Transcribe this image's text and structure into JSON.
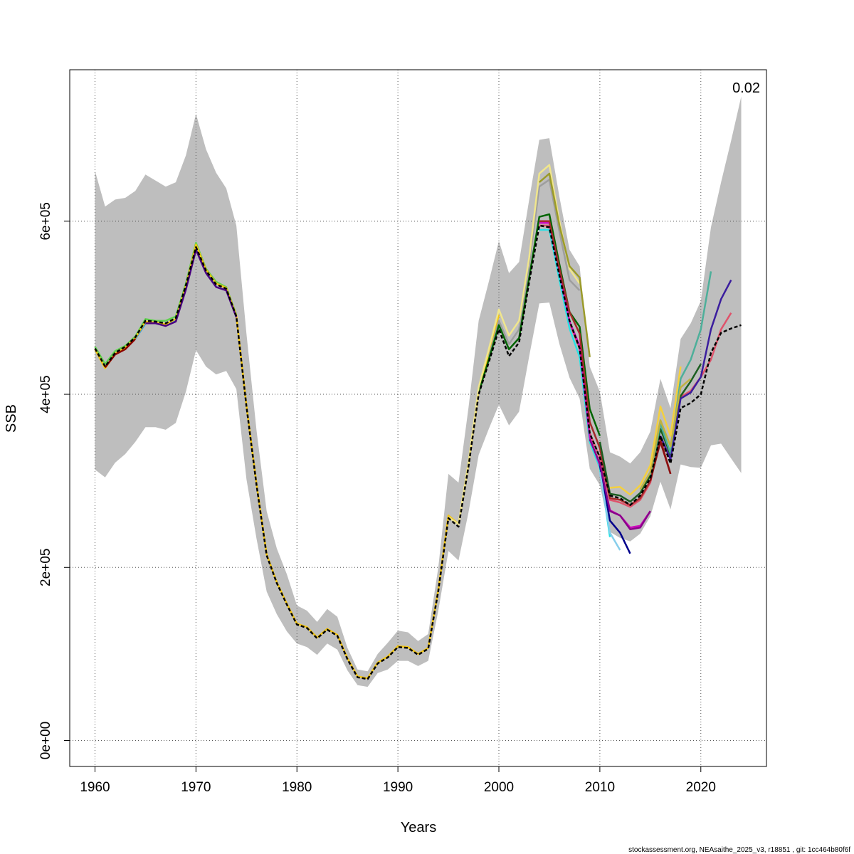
{
  "chart_data": {
    "type": "line",
    "xlabel": "Years",
    "ylabel": "SSB",
    "xlim": [
      1957.5,
      2026.5
    ],
    "ylim": [
      -30000,
      775000
    ],
    "x_ticks": [
      1960,
      1970,
      1980,
      1990,
      2000,
      2010,
      2020
    ],
    "x_tick_labels": [
      "1960",
      "1970",
      "1980",
      "1990",
      "2000",
      "2010",
      "2020"
    ],
    "y_ticks": [
      0,
      200000,
      400000,
      600000
    ],
    "y_tick_labels": [
      "0e+00",
      "2e+05",
      "4e+05",
      "6e+05"
    ],
    "grid": true,
    "annotation": "0.02",
    "footer": "stockassessment.org, NEAsaithe_2025_v3, r18851 , git: 1cc464b80f6f",
    "band_color": "#BEBEBE",
    "confidence_band": {
      "x": [
        1960,
        1961,
        1962,
        1963,
        1964,
        1965,
        1966,
        1967,
        1968,
        1969,
        1970,
        1971,
        1972,
        1973,
        1974,
        1975,
        1976,
        1977,
        1978,
        1979,
        1980,
        1981,
        1982,
        1983,
        1984,
        1985,
        1986,
        1987,
        1988,
        1989,
        1990,
        1991,
        1992,
        1993,
        1994,
        1995,
        1996,
        1997,
        1998,
        1999,
        2000,
        2001,
        2002,
        2003,
        2004,
        2005,
        2006,
        2007,
        2008,
        2009,
        2010,
        2011,
        2012,
        2013,
        2014,
        2015,
        2016,
        2017,
        2018,
        2019,
        2020,
        2021,
        2022,
        2023,
        2024
      ],
      "upper": [
        658000,
        617000,
        625000,
        627000,
        635000,
        654000,
        647000,
        640000,
        645000,
        676000,
        724000,
        683000,
        656000,
        638000,
        595000,
        470000,
        358000,
        265000,
        222000,
        192000,
        156000,
        150000,
        137000,
        152000,
        143000,
        107000,
        82000,
        80000,
        100000,
        113000,
        127000,
        125000,
        115000,
        123000,
        200000,
        308000,
        298000,
        385000,
        485000,
        530000,
        577000,
        540000,
        553000,
        625000,
        694000,
        696000,
        628000,
        567000,
        548000,
        432000,
        403000,
        333000,
        328000,
        320000,
        333000,
        357000,
        418000,
        384000,
        464000,
        482000,
        508000,
        593000,
        645000,
        693000,
        744000
      ],
      "lower": [
        313000,
        304000,
        321000,
        331000,
        345000,
        362000,
        362000,
        359000,
        367000,
        403000,
        451000,
        432000,
        423000,
        427000,
        406000,
        302000,
        233000,
        172000,
        146000,
        126000,
        112000,
        108000,
        99000,
        112000,
        105000,
        81000,
        64000,
        62000,
        78000,
        82000,
        92000,
        92000,
        86000,
        92000,
        150000,
        219000,
        208000,
        264000,
        330000,
        360000,
        388000,
        364000,
        380000,
        444000,
        505000,
        506000,
        458000,
        419000,
        395000,
        314000,
        295000,
        241000,
        234000,
        230000,
        239000,
        259000,
        299000,
        267000,
        319000,
        316000,
        315000,
        341000,
        343000,
        326000,
        309000
      ]
    },
    "series": [
      {
        "color": "#000000",
        "dashed": true,
        "x": [
          1960,
          1961,
          1962,
          1963,
          1964,
          1965,
          1966,
          1967,
          1968,
          1969,
          1970,
          1971,
          1972,
          1973,
          1974,
          1975,
          1976,
          1977,
          1978,
          1979,
          1980,
          1981,
          1982,
          1983,
          1984,
          1985,
          1986,
          1987,
          1988,
          1989,
          1990,
          1991,
          1992,
          1993,
          1994,
          1995,
          1996,
          1997,
          1998,
          1999,
          2000,
          2001,
          2002,
          2003,
          2004,
          2005,
          2006,
          2007,
          2008,
          2009,
          2010,
          2011,
          2012,
          2013,
          2014,
          2015,
          2016,
          2017,
          2018,
          2019,
          2020,
          2021,
          2022,
          2023,
          2024
        ],
        "values": [
          453000,
          432000,
          448000,
          455000,
          466000,
          485000,
          484000,
          482000,
          488000,
          526000,
          570000,
          543000,
          527000,
          522000,
          490000,
          386000,
          295000,
          214000,
          182000,
          157000,
          134000,
          130000,
          118000,
          128000,
          121000,
          94000,
          73000,
          71000,
          89000,
          96000,
          108000,
          107000,
          99000,
          106000,
          173000,
          257000,
          247000,
          317000,
          400000,
          437000,
          475000,
          444000,
          460000,
          530000,
          595000,
          593000,
          537000,
          485000,
          453000,
          355000,
          327000,
          283000,
          280000,
          272000,
          283000,
          303000,
          352000,
          320000,
          384000,
          390000,
          400000,
          448000,
          471000,
          476000,
          480000
        ]
      },
      {
        "color": "#DF536B",
        "x": [
          2004,
          2005,
          2006,
          2007,
          2008,
          2009,
          2010,
          2011,
          2012,
          2013,
          2014,
          2015,
          2016,
          2017,
          2018,
          2019,
          2020,
          2021,
          2022,
          2023
        ],
        "values": [
          595000,
          595000,
          540000,
          482000,
          453000,
          355000,
          327000,
          278000,
          275000,
          270000,
          278000,
          298000,
          350000,
          325000,
          397000,
          404000,
          420000,
          440000,
          475000,
          494000
        ]
      },
      {
        "color": "#61D04F",
        "x": [
          1960,
          1961,
          1962,
          1963,
          1964,
          1965,
          1966,
          1967,
          1968,
          1969,
          1970,
          1971,
          1972,
          1973,
          1974
        ],
        "values": [
          455000,
          435000,
          450000,
          456000,
          467000,
          487000,
          485000,
          485000,
          490000,
          528000,
          575000,
          545000,
          530000,
          524000,
          492000
        ]
      },
      {
        "color": "#2297E6",
        "x": [
          1964,
          1965,
          1966,
          1967,
          1968,
          1969,
          1970,
          1971,
          1972
        ],
        "values": [
          464000,
          482000,
          482000,
          480000,
          485000,
          522000,
          568000,
          541000,
          525000
        ]
      },
      {
        "color": "#28E2E5",
        "x": [
          2004,
          2005,
          2006,
          2007,
          2008,
          2009,
          2010,
          2011
        ],
        "values": [
          590000,
          590000,
          532000,
          476000,
          443000,
          345000,
          315000,
          235000
        ]
      },
      {
        "color": "#CD0BBC",
        "x": [
          2004,
          2005,
          2006,
          2007,
          2008,
          2009,
          2010,
          2011,
          2012,
          2013,
          2014,
          2015
        ],
        "values": [
          598000,
          598000,
          542000,
          484000,
          456000,
          350000,
          318000,
          266000,
          260000,
          246000,
          248000,
          265000
        ]
      },
      {
        "color": "#F5C710",
        "x": [
          1960,
          1961,
          1962,
          1963,
          1964,
          1965,
          1966,
          1967,
          1968,
          1969,
          1970,
          1971,
          1972,
          1973,
          1974,
          1975,
          1976,
          1977,
          1978,
          1979,
          1980,
          1981,
          1982,
          1983,
          1984,
          1985,
          1986,
          1987,
          1988,
          1989,
          1990,
          1991,
          1992,
          1993,
          1994,
          1995,
          1996,
          1997,
          1998,
          1999,
          2000
        ],
        "values": [
          452000,
          430000,
          447000,
          454000,
          465000,
          484000,
          483000,
          481000,
          487000,
          525000,
          573000,
          544000,
          528000,
          523000,
          491000,
          387000,
          296000,
          215000,
          183000,
          158000,
          135000,
          131000,
          119000,
          129000,
          122000,
          95000,
          74000,
          72000,
          90000,
          97000,
          109000,
          108000,
          100000,
          107000,
          174000,
          260000,
          250000,
          320000,
          405000,
          447000,
          492000
        ]
      },
      {
        "color": "#9E9E9E",
        "x": [
          1999,
          2000,
          2001,
          2002,
          2003,
          2004,
          2005,
          2006,
          2007,
          2008
        ],
        "values": [
          443000,
          485000,
          458000,
          475000,
          550000,
          640000,
          648000,
          588000,
          532000,
          520000
        ]
      },
      {
        "color": "#8B0000",
        "x": [
          1961,
          1962,
          1963,
          1964
        ],
        "values": [
          431000,
          446000,
          452000,
          464000
        ]
      },
      {
        "color": "#006400",
        "x": [
          1998,
          1999,
          2000,
          2001,
          2002,
          2003,
          2004,
          2005,
          2006,
          2007,
          2008,
          2009,
          2010
        ],
        "values": [
          402000,
          440000,
          480000,
          452000,
          465000,
          535000,
          605000,
          608000,
          550000,
          495000,
          478000,
          383000,
          352000
        ]
      },
      {
        "color": "#00008B",
        "x": [
          2010,
          2011,
          2012,
          2013
        ],
        "values": [
          318000,
          254000,
          240000,
          216000
        ]
      },
      {
        "color": "#87CEEB",
        "x": [
          2010,
          2011,
          2012
        ],
        "values": [
          310000,
          240000,
          220000
        ]
      },
      {
        "color": "#4B0082",
        "x": [
          1965,
          1966,
          1967,
          1968,
          1969,
          1970,
          1971,
          1972,
          1973,
          1974
        ],
        "values": [
          482000,
          482000,
          479000,
          484000,
          521000,
          567000,
          540000,
          524000,
          520000,
          489000
        ]
      },
      {
        "color": "#8B008B",
        "x": [
          2009,
          2010,
          2011,
          2012,
          2013,
          2014,
          2015
        ],
        "values": [
          348000,
          320000,
          265000,
          260000,
          244000,
          246000,
          265000
        ]
      },
      {
        "color": "#A52A2A",
        "x": [
          2004,
          2005,
          2006,
          2007,
          2008,
          2009,
          2010,
          2011,
          2012,
          2013,
          2014,
          2015,
          2016,
          2017
        ],
        "values": [
          600000,
          600000,
          545000,
          495000,
          470000,
          368000,
          338000,
          280000,
          278000,
          272000,
          280000,
          300000,
          348000,
          308000
        ]
      },
      {
        "color": "#1B5E20",
        "x": [
          2010,
          2011,
          2012,
          2013,
          2014,
          2015,
          2016,
          2017,
          2018,
          2019,
          2020
        ],
        "values": [
          345000,
          285000,
          283000,
          276000,
          286000,
          306000,
          360000,
          330000,
          398000,
          415000,
          435000
        ]
      },
      {
        "color": "#4DAF9A",
        "x": [
          2015,
          2016,
          2017,
          2018,
          2019,
          2020,
          2021
        ],
        "values": [
          306000,
          366000,
          332000,
          418000,
          440000,
          475000,
          542000
        ]
      },
      {
        "color": "#BFB240",
        "x": [
          2014,
          2015,
          2016,
          2017,
          2018,
          2019
        ],
        "values": [
          290000,
          310000,
          370000,
          340000,
          408000,
          418000
        ]
      },
      {
        "color": "#3B1E9E",
        "x": [
          2016,
          2017,
          2018,
          2019,
          2020,
          2021,
          2022,
          2023
        ],
        "values": [
          352000,
          325000,
          395000,
          402000,
          420000,
          475000,
          510000,
          532000
        ]
      },
      {
        "color": "#F0E68C",
        "x": [
          1995,
          1996,
          1997,
          1998,
          1999,
          2000,
          2001,
          2002,
          2003,
          2004,
          2005,
          2006,
          2007,
          2008
        ],
        "values": [
          258000,
          250000,
          322000,
          408000,
          452000,
          498000,
          468000,
          485000,
          558000,
          655000,
          665000,
          600000,
          545000,
          528000
        ]
      },
      {
        "color": "#F4D03F",
        "x": [
          2011,
          2012,
          2013,
          2014,
          2015,
          2016,
          2017,
          2018
        ],
        "values": [
          292000,
          293000,
          284000,
          295000,
          318000,
          386000,
          352000,
          432000
        ]
      },
      {
        "color": "#9B9B2A",
        "x": [
          2004,
          2005,
          2006,
          2007,
          2008,
          2009
        ],
        "values": [
          645000,
          655000,
          595000,
          548000,
          535000,
          443000
        ]
      },
      {
        "color": "#8B1010",
        "x": [
          2015,
          2016,
          2017
        ],
        "values": [
          300000,
          345000,
          308000
        ]
      }
    ]
  }
}
